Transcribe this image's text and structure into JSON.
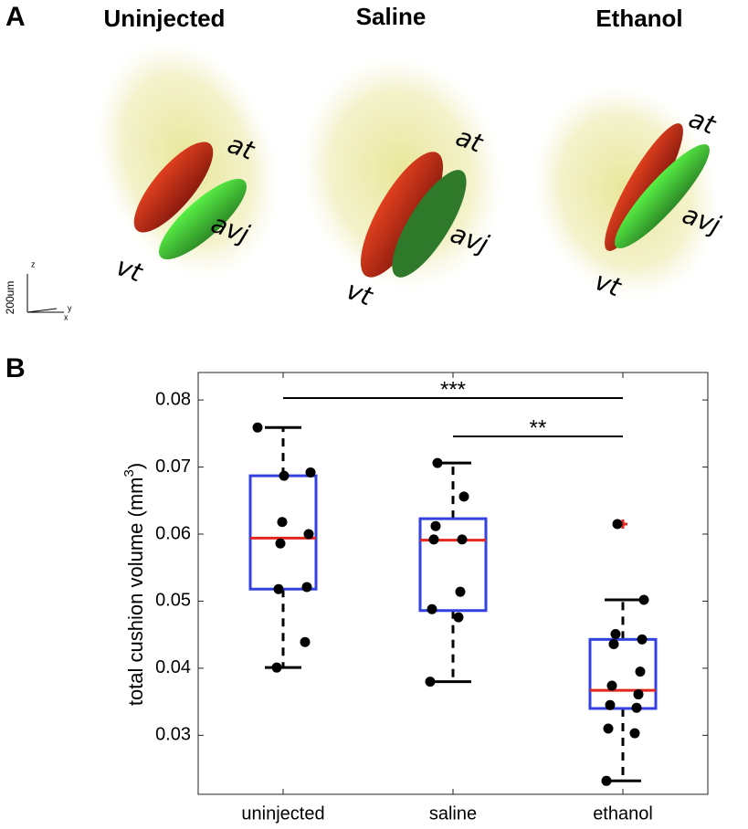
{
  "panel_a": {
    "label": "A",
    "titles": [
      "Uninjected",
      "Saline",
      "Ethanol"
    ],
    "structure_labels": [
      [
        "at",
        "avj",
        "vt"
      ],
      [
        "at",
        "avj",
        "vt"
      ],
      [
        "at",
        "avj",
        "vt"
      ]
    ],
    "scale_bar": {
      "length": "200um",
      "axes": [
        "z",
        "y",
        "x"
      ]
    }
  },
  "chart_data": {
    "type": "box",
    "panel_label": "B",
    "ylabel_parts": [
      "total cushion volume (mm",
      "3",
      ")"
    ],
    "categories": [
      "uninjected",
      "saline",
      "ethanol"
    ],
    "ylim": [
      0.0212,
      0.0841
    ],
    "yticks": [
      0.03,
      0.04,
      0.05,
      0.06,
      0.07,
      0.08
    ],
    "box_color": "#3341e0",
    "median_color": "#e5261f",
    "point_color": "#000000",
    "outlier_color": "#e5261f",
    "boxes": [
      {
        "whisker_low": 0.0401,
        "q1": 0.0518,
        "median": 0.0594,
        "q3": 0.0687,
        "whisker_high": 0.0759
      },
      {
        "whisker_low": 0.038,
        "q1": 0.0486,
        "median": 0.0591,
        "q3": 0.0623,
        "whisker_high": 0.0706
      },
      {
        "whisker_low": 0.0232,
        "q1": 0.034,
        "median": 0.0367,
        "q3": 0.0443,
        "whisker_high": 0.0502,
        "outliers": [
          0.0615
        ]
      }
    ],
    "points": [
      [
        0.0759,
        0.0687,
        0.0692,
        0.0618,
        0.06,
        0.0586,
        0.0521,
        0.0518,
        0.0439,
        0.0401
      ],
      [
        0.0706,
        0.0656,
        0.0612,
        0.0592,
        0.0592,
        0.0514,
        0.0488,
        0.0476,
        0.038
      ],
      [
        0.0615,
        0.0502,
        0.0451,
        0.0443,
        0.0436,
        0.0395,
        0.0374,
        0.0361,
        0.0345,
        0.0341,
        0.031,
        0.0303,
        0.0232
      ]
    ],
    "annotations": [
      "***",
      "**"
    ]
  }
}
